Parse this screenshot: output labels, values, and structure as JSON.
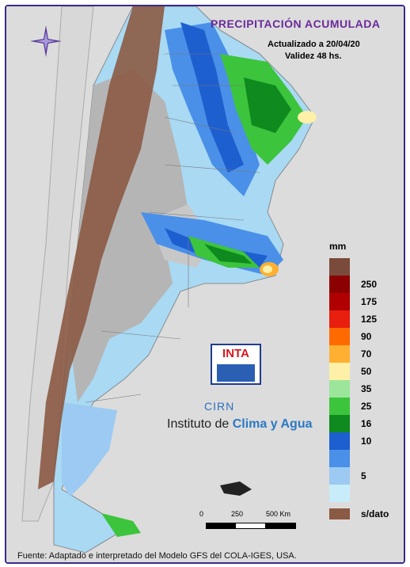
{
  "map": {
    "title": "PRECIPITACIÓN ACUMULADA",
    "updated": "Actualizado a 20/04/20",
    "validity": "Validez 48 hs.",
    "source": "Fuente: Adaptado e interpretado del Modelo GFS del COLA-IGES, USA.",
    "logos": {
      "inta": "INTA",
      "cirn": "CIRN",
      "institute_prefix": "Instituto de ",
      "institute_highlight": "Clima y Agua"
    },
    "scale_bar": {
      "labels": [
        "0",
        "250",
        "500 Km"
      ]
    },
    "compass_icon": "compass-rose-icon"
  },
  "legend": {
    "unit": "mm",
    "classes": [
      {
        "label": "",
        "color": "#7a4a3a"
      },
      {
        "label": "250",
        "color": "#8b0000"
      },
      {
        "label": "175",
        "color": "#b00000"
      },
      {
        "label": "125",
        "color": "#e81e0e"
      },
      {
        "label": "90",
        "color": "#ff6a00"
      },
      {
        "label": "70",
        "color": "#ffb030"
      },
      {
        "label": "50",
        "color": "#fff0a8"
      },
      {
        "label": "35",
        "color": "#9be69b"
      },
      {
        "label": "25",
        "color": "#3cc43c"
      },
      {
        "label": "16",
        "color": "#0e8a1e"
      },
      {
        "label": "10",
        "color": "#1e5fd0"
      },
      {
        "label": "",
        "color": "#4a90e8"
      },
      {
        "label": "5",
        "color": "#9ccaf2"
      },
      {
        "label": "",
        "color": "#c8ecfa"
      }
    ],
    "no_data_label": "s/dato",
    "no_data_color": "#8b5a44"
  }
}
